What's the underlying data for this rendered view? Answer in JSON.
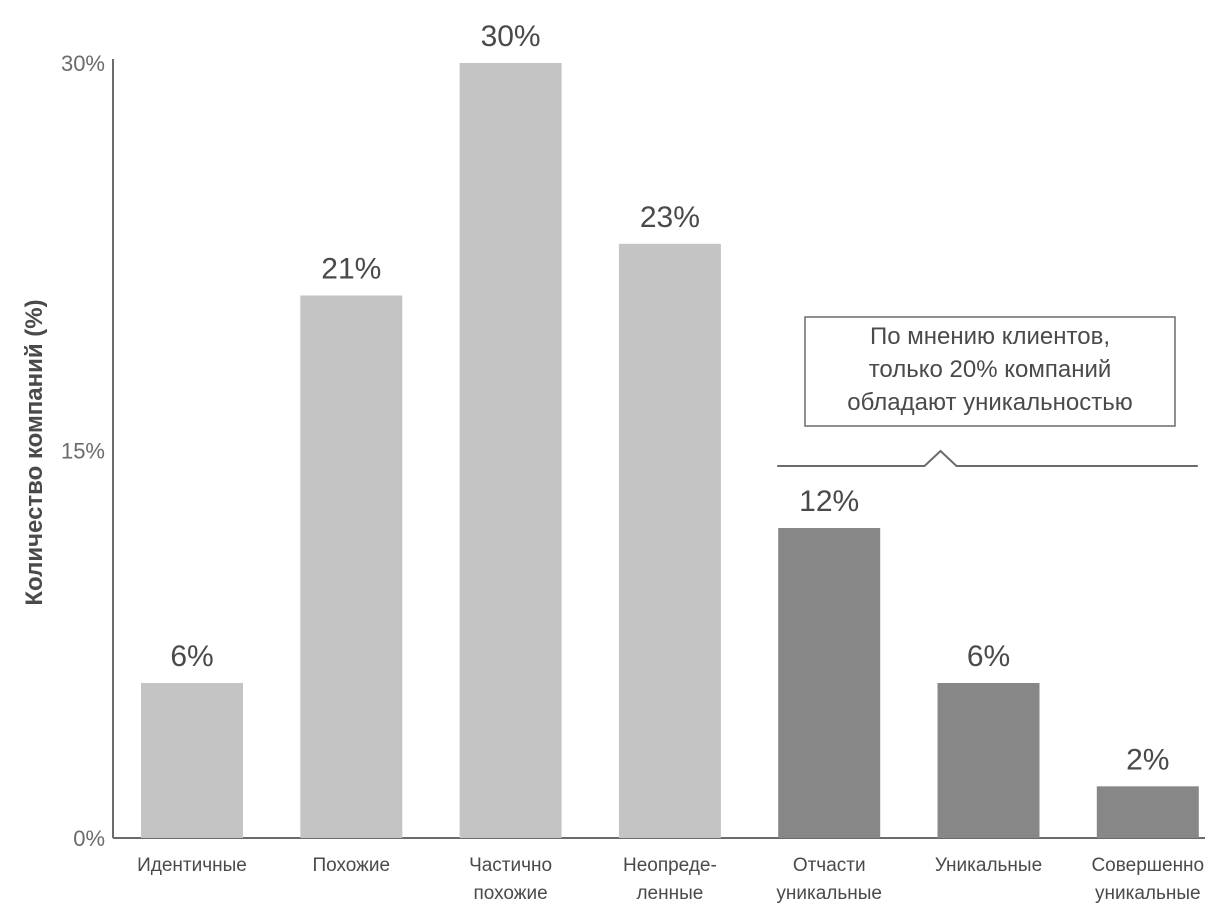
{
  "chart_data": {
    "type": "bar",
    "ylabel": "Количество компаний (%)",
    "ylim": [
      0,
      30
    ],
    "yticks": [
      {
        "value": 0,
        "label": "0%"
      },
      {
        "value": 15,
        "label": "15%"
      },
      {
        "value": 30,
        "label": "30%"
      }
    ],
    "categories": [
      [
        "Идентичные"
      ],
      [
        "Похожие"
      ],
      [
        "Частично",
        "похожие"
      ],
      [
        "Неопреде-",
        "ленные"
      ],
      [
        "Отчасти",
        "уникальные"
      ],
      [
        "Уникальные"
      ],
      [
        "Совершенно",
        "уникальные"
      ]
    ],
    "values": [
      6,
      21,
      30,
      23,
      12,
      6,
      2
    ],
    "value_labels": [
      "6%",
      "21%",
      "30%",
      "23%",
      "12%",
      "6%",
      "2%"
    ],
    "highlight_group": [
      4,
      5,
      6
    ],
    "annotation": {
      "lines": [
        "По мнению клиентов,",
        "только 20% компаний",
        "обладают уникальностью"
      ],
      "spans_categories": [
        4,
        6
      ]
    },
    "colors": {
      "base": "#c4c4c4",
      "highlight": "#878787",
      "axis": "#6b6b6b"
    },
    "grid": false,
    "legend": "none"
  }
}
